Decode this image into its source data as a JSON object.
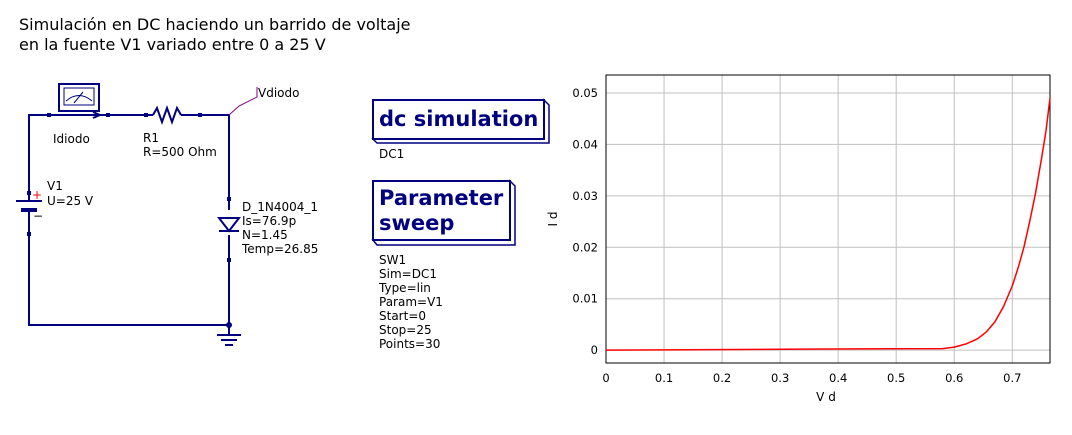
{
  "title": {
    "line1": "Simulación en DC haciendo un barrido de voltaje",
    "line2": "en la fuente V1 variado entre 0 a 25 V"
  },
  "schematic": {
    "ammeter": {
      "name": "Idiodo"
    },
    "resistor": {
      "name": "R1",
      "value": "R=500 Ohm"
    },
    "node_label": "Vdiodo",
    "source": {
      "name": "V1",
      "value": "U=25 V",
      "plus": "+",
      "minus": "−"
    },
    "diode": {
      "name": "D_1N4004_1",
      "params": [
        "Is=76.9p",
        "N=1.45",
        "Temp=26.85"
      ]
    },
    "dc_block": {
      "label": "dc simulation",
      "name": "DC1"
    },
    "sweep_block": {
      "label_line1": "Parameter",
      "label_line2": "sweep",
      "params": [
        "SW1",
        "Sim=DC1",
        "Type=lin",
        "Param=V1",
        "Start=0",
        "Stop=25",
        "Points=30"
      ]
    }
  },
  "colors": {
    "wire": "#000080",
    "curve": "#ff0000",
    "grid": "#c0c0c0",
    "plus": "#ff0000"
  },
  "chart_data": {
    "type": "line",
    "xlabel": "V d",
    "ylabel": "I d",
    "xlim": [
      0,
      0.765
    ],
    "ylim": [
      -0.0025,
      0.0535
    ],
    "xticks": [
      0,
      0.1,
      0.2,
      0.3,
      0.4,
      0.5,
      0.6,
      0.7
    ],
    "xtick_labels": [
      "0",
      "0.1",
      "0.2",
      "0.3",
      "0.4",
      "0.5",
      "0.6",
      "0.7"
    ],
    "yticks": [
      0,
      0.01,
      0.02,
      0.03,
      0.04,
      0.05
    ],
    "ytick_labels": [
      "0",
      "0.01",
      "0.02",
      "0.03",
      "0.04",
      "0.05"
    ],
    "grid": true,
    "series": [
      {
        "x": [
          0,
          0.1,
          0.34,
          0.58,
          0.6,
          0.62,
          0.64,
          0.655,
          0.67,
          0.685,
          0.7,
          0.71,
          0.72,
          0.73,
          0.74,
          0.75,
          0.758,
          0.765
        ],
        "y": [
          0,
          5e-05,
          0.0002,
          0.0003,
          0.0006,
          0.0012,
          0.0022,
          0.0035,
          0.0055,
          0.0085,
          0.0125,
          0.016,
          0.02,
          0.025,
          0.0305,
          0.037,
          0.0425,
          0.049
        ]
      }
    ]
  }
}
